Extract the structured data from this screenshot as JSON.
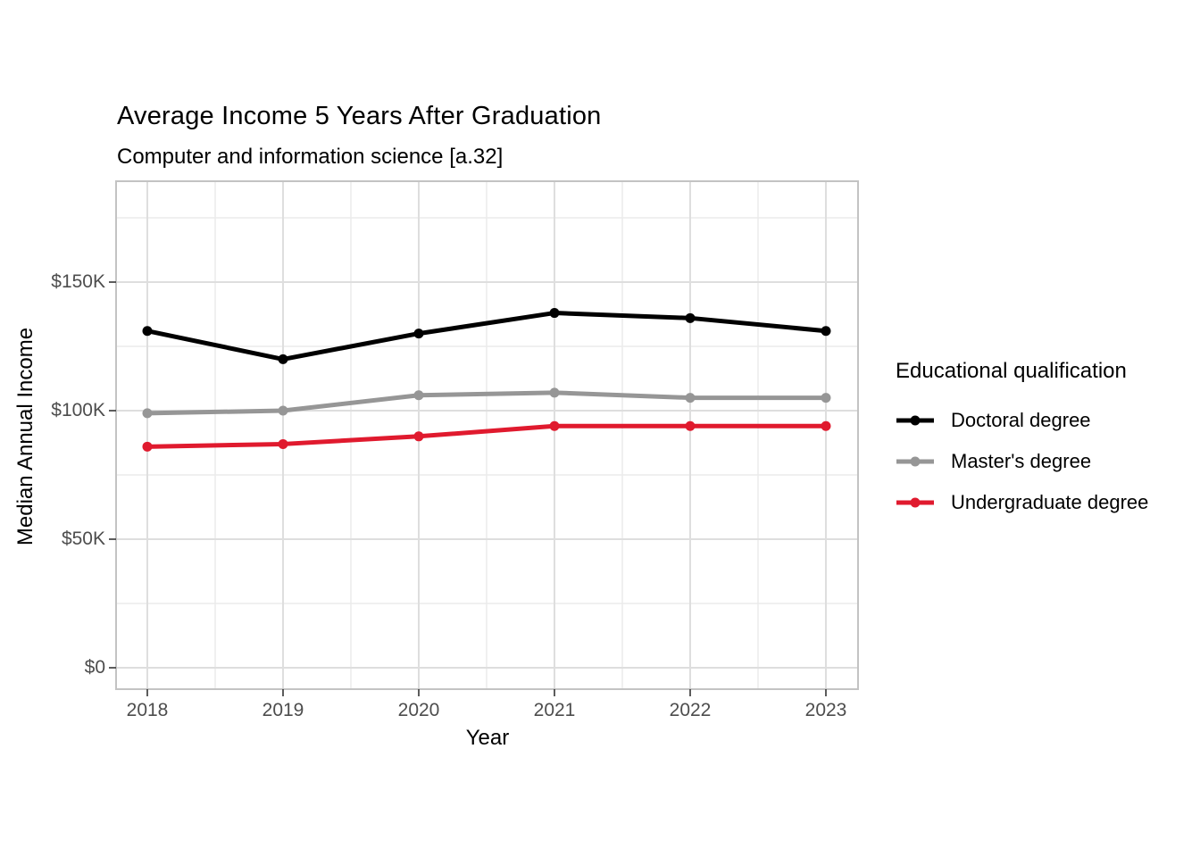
{
  "header": {
    "title": "Average Income 5 Years After Graduation",
    "subtitle": "Computer and information science [a.32]"
  },
  "chart_data": {
    "type": "line",
    "x": [
      2018,
      2019,
      2020,
      2021,
      2022,
      2023
    ],
    "series": [
      {
        "name": "Doctoral degree",
        "color": "#000000",
        "values": [
          131,
          120,
          130,
          138,
          136,
          131
        ]
      },
      {
        "name": "Master's degree",
        "color": "#969696",
        "values": [
          99,
          100,
          106,
          107,
          105,
          105
        ]
      },
      {
        "name": "Undergraduate degree",
        "color": "#E01A2E",
        "values": [
          86,
          87,
          90,
          94,
          94,
          94
        ]
      }
    ],
    "values_unit": "thousand US dollars",
    "title": "Average Income 5 Years After Graduation",
    "subtitle": "Computer and information science [a.32]",
    "xlabel": "Year",
    "ylabel": "Median Annual Income",
    "x_tick_labels": [
      "2018",
      "2019",
      "2020",
      "2021",
      "2022",
      "2023"
    ],
    "y_ticks": {
      "values": [
        0,
        50,
        100,
        150
      ],
      "labels": [
        "$0",
        "$50K",
        "$100K",
        "$150K"
      ]
    },
    "y_minor": [
      25,
      75,
      125,
      175
    ],
    "ylim": [
      -9,
      189
    ],
    "grid": true,
    "legend_title": "Educational qualification",
    "legend_position": "right",
    "marker": "circle"
  },
  "colors": {
    "background": "#FFFFFF",
    "panel_border": "#C3C3C3",
    "grid_major": "#DEDEDE",
    "grid_minor": "#EBEBEB",
    "axis_tick": "#333333",
    "tick_text": "#4D4D4D",
    "text": "#000000"
  }
}
